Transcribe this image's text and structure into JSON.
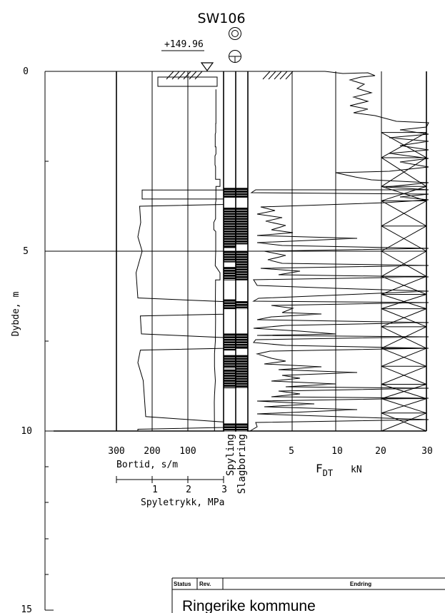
{
  "borehole": {
    "id": "SW106",
    "elevation": "+149.96"
  },
  "depth_axis": {
    "label": "Dybde, m",
    "ticks": [
      "0",
      "5",
      "10",
      "15"
    ]
  },
  "bortid_axis": {
    "label": "Bortid, s/m",
    "ticks": [
      "300",
      "200",
      "100"
    ]
  },
  "spyletrykk_axis": {
    "label": "Spyletrykk, MPa",
    "ticks": [
      "1",
      "2",
      "3"
    ]
  },
  "column_labels": {
    "spyling": "Spyling",
    "slagboring": "Slagboring"
  },
  "force_axis": {
    "label_main": "F",
    "label_sub": "DT",
    "unit": "kN",
    "ticks": [
      "5",
      "10",
      "20",
      "30"
    ]
  },
  "title_block": {
    "status": "Status",
    "rev": "Rev.",
    "endring": "Endring",
    "client": "Ringerike kommune"
  },
  "chart_data": {
    "type": "line",
    "depth_range_m": [
      0,
      15
    ],
    "bortid_profile": [
      [
        0,
        3.3
      ],
      [
        228,
        3.3
      ],
      [
        228,
        3.55
      ],
      [
        0,
        3.55
      ],
      [
        0,
        3.7
      ],
      [
        235,
        3.75
      ],
      [
        232,
        4.2
      ],
      [
        240,
        4.6
      ],
      [
        228,
        5.0
      ],
      [
        245,
        5.6
      ],
      [
        240,
        6.3
      ],
      [
        0,
        6.4
      ],
      [
        0,
        6.75
      ],
      [
        233,
        6.8
      ],
      [
        230,
        7.3
      ],
      [
        0,
        7.4
      ],
      [
        0,
        7.7
      ],
      [
        233,
        7.75
      ],
      [
        240,
        8.1
      ],
      [
        225,
        8.6
      ],
      [
        218,
        9.6
      ],
      [
        0,
        9.75
      ],
      [
        0,
        9.9
      ],
      [
        240,
        9.95
      ],
      [
        240,
        10.0
      ]
    ],
    "spyletrykk_profile": [
      [
        0.85,
        0.5
      ],
      [
        0.85,
        1.4
      ],
      [
        0.85,
        1.45
      ],
      [
        0.8,
        1.45
      ],
      [
        0.8,
        1.7
      ],
      [
        0.65,
        1.75
      ],
      [
        0.65,
        2.1
      ],
      [
        0.85,
        2.1
      ],
      [
        0.85,
        2.3
      ],
      [
        0.6,
        2.35
      ],
      [
        0.6,
        2.6
      ],
      [
        0.75,
        2.65
      ],
      [
        0.75,
        3.0
      ],
      [
        0.1,
        3.0
      ],
      [
        0.1,
        3.2
      ],
      [
        0.85,
        3.2
      ],
      [
        0.85,
        3.6
      ],
      [
        0.75,
        3.65
      ],
      [
        0.75,
        4.1
      ],
      [
        0.25,
        4.2
      ],
      [
        0.25,
        4.4
      ],
      [
        0.8,
        4.45
      ],
      [
        0.8,
        5.0
      ],
      [
        0.65,
        5.4
      ],
      [
        0.1,
        5.6
      ],
      [
        0.1,
        5.8
      ],
      [
        0.75,
        5.8
      ],
      [
        0.7,
        6.4
      ],
      [
        0.75,
        6.9
      ],
      [
        0.7,
        7.5
      ],
      [
        0.55,
        7.7
      ],
      [
        0.45,
        7.85
      ],
      [
        0.45,
        8.2
      ],
      [
        0.7,
        8.6
      ],
      [
        0.45,
        9.0
      ],
      [
        0.4,
        9.2
      ],
      [
        0.45,
        9.9
      ],
      [
        0.45,
        10.0
      ]
    ]
  }
}
